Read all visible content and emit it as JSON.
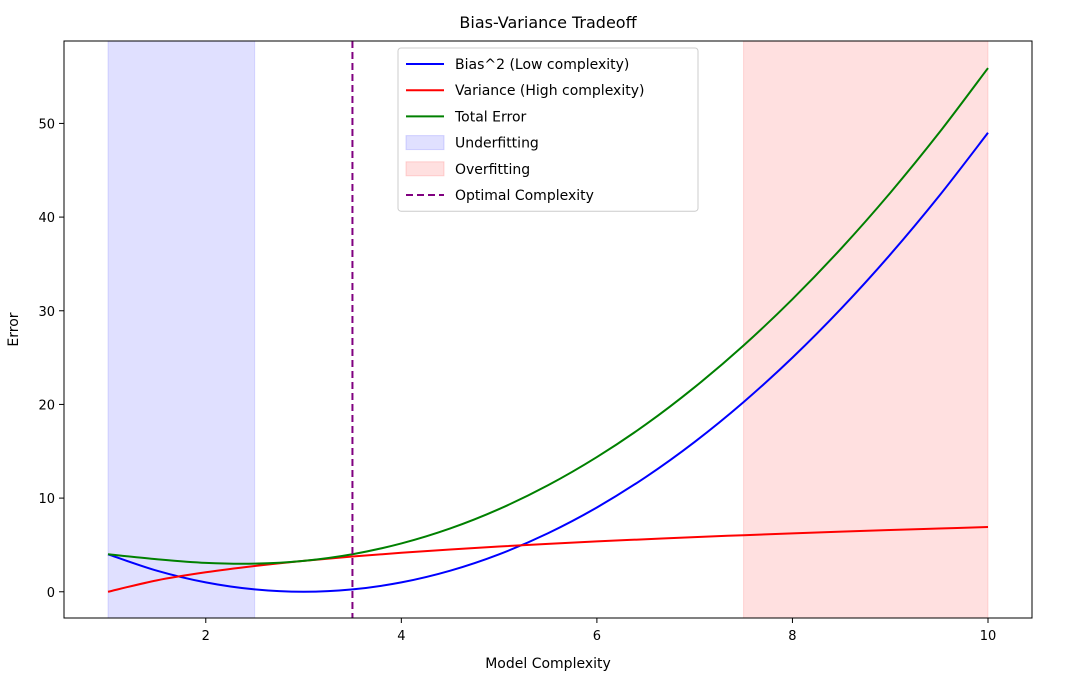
{
  "chart_data": {
    "type": "line",
    "title": "Bias-Variance Tradeoff",
    "xlabel": "Model Complexity",
    "ylabel": "Error",
    "xlim": [
      0.55,
      10.45
    ],
    "ylim": [
      -2.8,
      58.8
    ],
    "xticks": [
      2,
      4,
      6,
      8,
      10
    ],
    "yticks": [
      0,
      10,
      20,
      30,
      40,
      50
    ],
    "grid": false,
    "legend_position": "upper-center",
    "series": [
      {
        "name": "Bias^2 (Low complexity)",
        "color": "#0000ff",
        "style": "solid",
        "x": [
          1.0,
          1.5,
          2.0,
          2.5,
          3.0,
          3.5,
          4.0,
          4.5,
          5.0,
          5.5,
          6.0,
          6.5,
          7.0,
          7.5,
          8.0,
          8.5,
          9.0,
          9.5,
          10.0
        ],
        "y": [
          4.0,
          2.25,
          1.0,
          0.25,
          0.0,
          0.25,
          1.0,
          2.25,
          4.0,
          6.25,
          9.0,
          12.25,
          16.0,
          20.25,
          25.0,
          30.25,
          36.0,
          42.25,
          49.0
        ]
      },
      {
        "name": "Variance (High complexity)",
        "color": "#ff0000",
        "style": "solid",
        "x": [
          1.0,
          1.5,
          2.0,
          2.5,
          3.0,
          3.5,
          4.0,
          4.5,
          5.0,
          5.5,
          6.0,
          6.5,
          7.0,
          7.5,
          8.0,
          8.5,
          9.0,
          9.5,
          10.0
        ],
        "y": [
          0.0,
          1.22,
          2.08,
          2.75,
          3.3,
          3.76,
          4.16,
          4.51,
          4.83,
          5.12,
          5.38,
          5.61,
          5.84,
          6.04,
          6.24,
          6.42,
          6.59,
          6.75,
          6.91
        ]
      },
      {
        "name": "Total Error",
        "color": "#008000",
        "style": "solid",
        "x": [
          1.0,
          1.5,
          2.0,
          2.5,
          3.0,
          3.5,
          4.0,
          4.5,
          5.0,
          5.5,
          6.0,
          6.5,
          7.0,
          7.5,
          8.0,
          8.5,
          9.0,
          9.5,
          10.0
        ],
        "y": [
          4.0,
          3.47,
          3.08,
          3.0,
          3.3,
          4.01,
          5.16,
          6.76,
          8.83,
          11.37,
          14.38,
          17.86,
          21.84,
          26.29,
          31.24,
          36.67,
          42.59,
          49.0,
          55.91
        ]
      },
      {
        "name": "Optimal Complexity",
        "color": "#800080",
        "style": "dashed",
        "vline": 3.5
      }
    ],
    "regions": [
      {
        "name": "Underfitting",
        "x": [
          1.0,
          2.5
        ],
        "color": "#0000ff",
        "alpha": 0.12
      },
      {
        "name": "Overfitting",
        "x": [
          7.5,
          10.0
        ],
        "color": "#ff0000",
        "alpha": 0.12
      }
    ]
  }
}
